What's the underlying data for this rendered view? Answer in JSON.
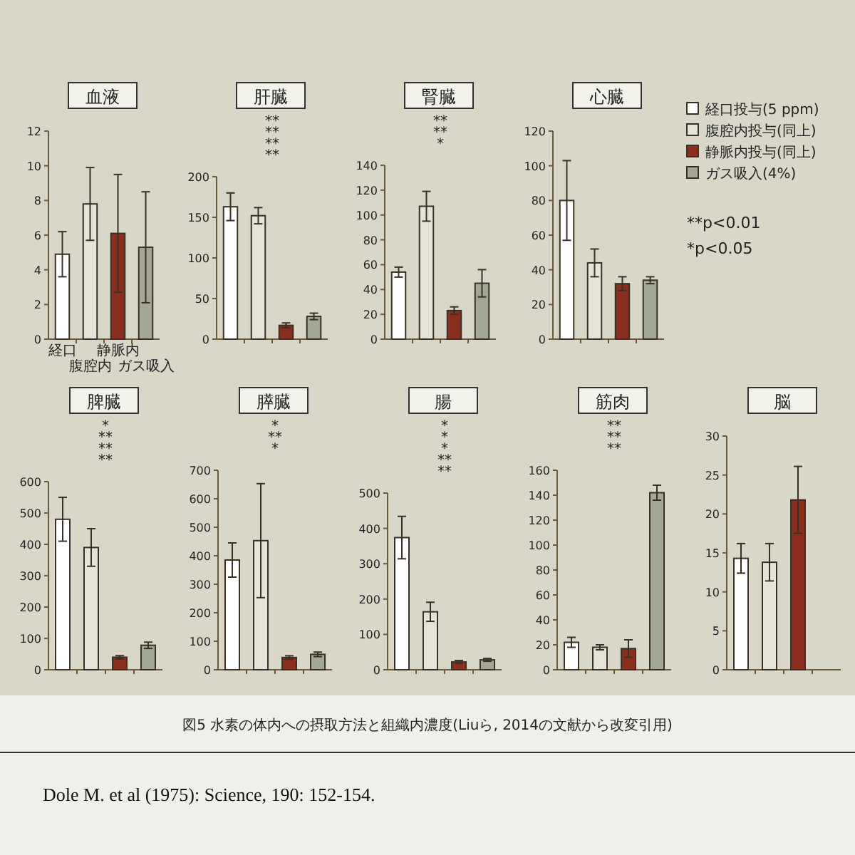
{
  "chart_data": [
    {
      "type": "bar",
      "title": "血液",
      "categories": [
        "経口",
        "腹腔内",
        "静脈内",
        "ガス吸入"
      ],
      "values": [
        4.9,
        7.8,
        6.1,
        5.3
      ],
      "errors": [
        1.3,
        2.1,
        3.4,
        3.2
      ],
      "colors": [
        "#ffffff",
        "#e6e4d8",
        "#8a2e1e",
        "#a3a894"
      ],
      "ylim": [
        0,
        12
      ],
      "yticks": [
        0,
        2,
        4,
        6,
        8,
        10,
        12
      ]
    },
    {
      "type": "bar",
      "title": "肝臓",
      "categories": [
        null,
        null,
        null,
        null
      ],
      "values": [
        163,
        152,
        17,
        28
      ],
      "errors": [
        17,
        10,
        3,
        4
      ],
      "colors": [
        "#ffffff",
        "#e6e4d8",
        "#8a2e1e",
        "#a3a894"
      ],
      "ylim": [
        0,
        200
      ],
      "yticks": [
        0,
        50,
        100,
        150,
        200
      ],
      "annotations": [
        "**",
        "**",
        "**",
        "**"
      ]
    },
    {
      "type": "bar",
      "title": "腎臓",
      "categories": [
        null,
        null,
        null,
        null
      ],
      "values": [
        54,
        107,
        23,
        45
      ],
      "errors": [
        4,
        12,
        3,
        11
      ],
      "colors": [
        "#ffffff",
        "#e6e4d8",
        "#8a2e1e",
        "#a3a894"
      ],
      "ylim": [
        0,
        140
      ],
      "yticks": [
        0,
        20,
        40,
        60,
        80,
        100,
        120,
        140
      ],
      "annotations": [
        "**",
        "**",
        "*"
      ]
    },
    {
      "type": "bar",
      "title": "心臓",
      "categories": [
        null,
        null,
        null,
        null
      ],
      "stacked": true,
      "legend": "right",
      "ylim": [
        0,
        120
      ],
      "yticks": [
        0,
        20,
        40,
        60,
        80,
        100,
        120
      ],
      "series": [
        {
          "name": "経口投与(5 ppm)",
          "color": "#ffffff",
          "values": [
            80,
            null,
            null,
            null
          ],
          "errors": [
            23,
            null,
            null,
            null
          ]
        },
        {
          "name": "腹腔内投与(同上)",
          "color": "#e6e4d8",
          "values": [
            null,
            44,
            null,
            null
          ],
          "errors": [
            null,
            8,
            null,
            null
          ]
        },
        {
          "name": "静脈内投与(同上)",
          "color": "#8a2e1e",
          "values": [
            null,
            null,
            32,
            null
          ],
          "errors": [
            null,
            null,
            4,
            null
          ]
        },
        {
          "name": "ガス吸入(4%)",
          "color": "#a3a894",
          "values": [
            null,
            null,
            null,
            34
          ],
          "errors": [
            null,
            null,
            null,
            2
          ]
        }
      ]
    },
    {
      "type": "bar",
      "title": "脾臓",
      "categories": [
        null,
        null,
        null,
        null
      ],
      "values": [
        480,
        390,
        40,
        78
      ],
      "errors": [
        70,
        60,
        5,
        10
      ],
      "colors": [
        "#ffffff",
        "#e6e4d8",
        "#8a2e1e",
        "#a3a894"
      ],
      "ylim": [
        0,
        600
      ],
      "yticks": [
        0,
        100,
        200,
        300,
        400,
        500,
        600
      ],
      "annotations": [
        "*",
        "**",
        "**",
        "**"
      ]
    },
    {
      "type": "bar",
      "title": "膵臓",
      "categories": [
        null,
        null,
        null,
        null
      ],
      "values": [
        385,
        453,
        43,
        54
      ],
      "errors": [
        60,
        200,
        6,
        8
      ],
      "colors": [
        "#ffffff",
        "#e6e4d8",
        "#8a2e1e",
        "#a3a894"
      ],
      "ylim": [
        0,
        700
      ],
      "yticks": [
        0,
        100,
        200,
        300,
        400,
        500,
        600,
        700
      ],
      "annotations": [
        "*",
        "**",
        "*"
      ]
    },
    {
      "type": "bar",
      "title": "腸",
      "categories": [
        null,
        null,
        null,
        null
      ],
      "values": [
        374,
        164,
        22,
        28
      ],
      "errors": [
        60,
        27,
        4,
        4
      ],
      "colors": [
        "#ffffff",
        "#e6e4d8",
        "#8a2e1e",
        "#a3a894"
      ],
      "ylim": [
        0,
        500
      ],
      "yticks": [
        0,
        100,
        200,
        300,
        400,
        500
      ],
      "annotations": [
        "*",
        "*",
        "*",
        "**",
        "**"
      ]
    },
    {
      "type": "bar",
      "title": "筋肉",
      "categories": [
        null,
        null,
        null,
        null
      ],
      "values": [
        22,
        18,
        17,
        142
      ],
      "errors": [
        4,
        2,
        7,
        6
      ],
      "colors": [
        "#ffffff",
        "#e6e4d8",
        "#8a2e1e",
        "#a3a894"
      ],
      "ylim": [
        0,
        160
      ],
      "yticks": [
        0,
        20,
        40,
        60,
        80,
        100,
        120,
        140,
        160
      ],
      "annotations": [
        "**",
        "**",
        "**"
      ]
    },
    {
      "type": "bar",
      "title": "脳",
      "categories": [
        null,
        null,
        null,
        null
      ],
      "values": [
        14.3,
        13.8,
        21.8,
        null
      ],
      "errors": [
        1.9,
        2.4,
        4.3,
        null
      ],
      "colors": [
        "#ffffff",
        "#e6e4d8",
        "#8a2e1e",
        null
      ],
      "ylim": [
        0,
        30
      ],
      "yticks": [
        0,
        5,
        10,
        15,
        20,
        25,
        30
      ]
    },
    {
      "type": "other",
      "annotations": [
        "**p<0.01",
        "*p<0.05"
      ]
    },
    {
      "type": "other",
      "annotations": [
        "図5 水素の体内への摂取方法と組織内濃度(Liuら, 2014の文献から改変引用)",
        "Dole M. et al (1975): Science, 190: 152-154."
      ]
    }
  ]
}
